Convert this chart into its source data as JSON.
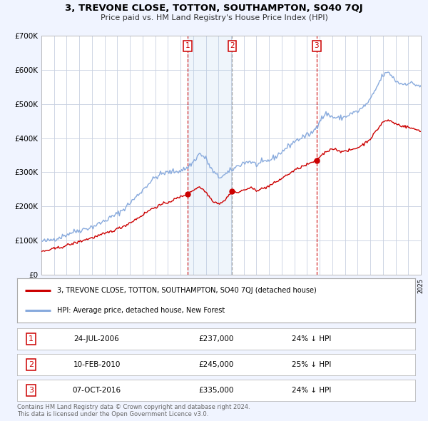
{
  "title": "3, TREVONE CLOSE, TOTTON, SOUTHAMPTON, SO40 7QJ",
  "subtitle": "Price paid vs. HM Land Registry's House Price Index (HPI)",
  "bg_color": "#f0f4ff",
  "plot_bg_color": "#ffffff",
  "grid_color": "#c8d0e0",
  "red_color": "#cc0000",
  "blue_color": "#88aadd",
  "sale_year_floats": [
    2006.542,
    2010.083,
    2016.75
  ],
  "sale_prices": [
    237000,
    245000,
    335000
  ],
  "sale_labels": [
    "1",
    "2",
    "3"
  ],
  "vline_colors": [
    "#cc0000",
    "#999999",
    "#cc0000"
  ],
  "shade_spans": [
    [
      2006.542,
      2010.083
    ]
  ],
  "legend_red": "3, TREVONE CLOSE, TOTTON, SOUTHAMPTON, SO40 7QJ (detached house)",
  "legend_blue": "HPI: Average price, detached house, New Forest",
  "table_rows": [
    {
      "num": "1",
      "date": "24-JUL-2006",
      "price": "£237,000",
      "pct": "24% ↓ HPI"
    },
    {
      "num": "2",
      "date": "10-FEB-2010",
      "price": "£245,000",
      "pct": "25% ↓ HPI"
    },
    {
      "num": "3",
      "date": "07-OCT-2016",
      "price": "£335,000",
      "pct": "24% ↓ HPI"
    }
  ],
  "footer": "Contains HM Land Registry data © Crown copyright and database right 2024.\nThis data is licensed under the Open Government Licence v3.0.",
  "ylim": [
    0,
    700000
  ],
  "ytick_vals": [
    0,
    100000,
    200000,
    300000,
    400000,
    500000,
    600000,
    700000
  ],
  "ytick_labels": [
    "£0",
    "£100K",
    "£200K",
    "£300K",
    "£400K",
    "£500K",
    "£600K",
    "£700K"
  ],
  "xlim": [
    1995,
    2025
  ]
}
